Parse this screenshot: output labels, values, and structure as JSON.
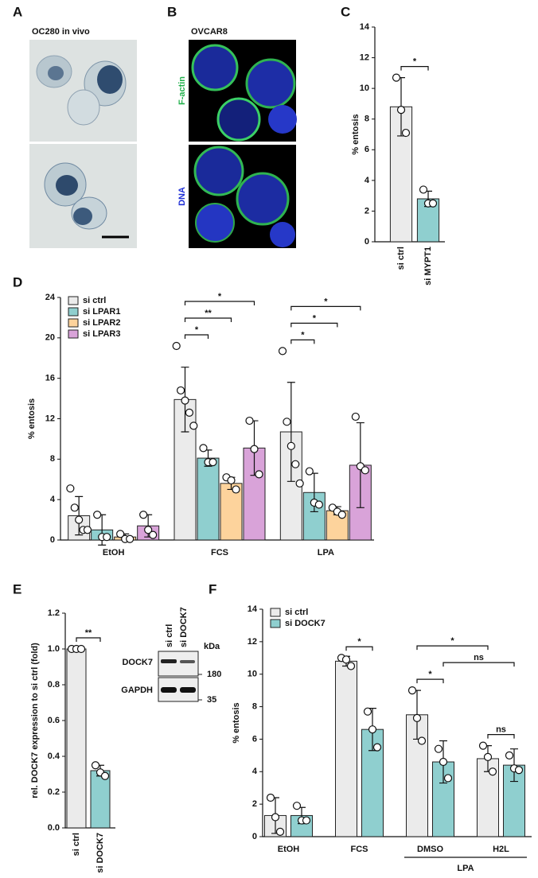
{
  "figure": {
    "panel_labels": [
      "A",
      "B",
      "C",
      "D",
      "E",
      "F"
    ],
    "panel_a": {
      "title": "OC280 in vivo"
    },
    "panel_b": {
      "title": "OVCAR8",
      "channels": [
        "F-actin",
        "DNA"
      ]
    },
    "blot": {
      "lanes": [
        "si ctrl",
        "si DOCK7"
      ],
      "unit": "kDa",
      "proteins": [
        "DOCK7",
        "GAPDH"
      ],
      "markers": [
        180,
        35
      ]
    }
  },
  "chart_data": [
    {
      "type": "bar",
      "y_label": "% entosis",
      "categories": [
        "si ctrl",
        "si MYPT1"
      ],
      "values": [
        8.8,
        2.8
      ],
      "errors": [
        1.9,
        0.5
      ],
      "points": [
        [
          10.7,
          8.6,
          7.1
        ],
        [
          3.4,
          2.5,
          2.5
        ]
      ],
      "colors": [
        "#ebebeb",
        "#8fcfcf"
      ],
      "ylim": [
        0,
        14
      ],
      "yticks": [
        0,
        2,
        4,
        6,
        8,
        10,
        12,
        14
      ],
      "significance": [
        {
          "label": "*",
          "between": [
            {
              "category": "si ctrl"
            },
            {
              "category": "si MYPT1"
            }
          ]
        }
      ]
    },
    {
      "type": "grouped_bar",
      "y_label": "% entosis",
      "categories": [
        "EtOH",
        "FCS",
        "LPA"
      ],
      "legend": "top-left",
      "series": [
        {
          "name": "si ctrl",
          "color": "#ebebeb",
          "values": [
            2.4,
            13.9,
            10.7
          ],
          "errors": [
            1.9,
            3.2,
            4.9
          ],
          "points": [
            [
              5.1,
              3.2,
              2.0,
              1.0,
              1.0
            ],
            [
              19.2,
              14.8,
              13.8,
              12.6,
              11.3
            ],
            [
              18.7,
              11.7,
              9.3,
              7.5,
              5.6
            ]
          ]
        },
        {
          "name": "si LPAR1",
          "color": "#8fcfcf",
          "values": [
            1.0,
            8.1,
            4.7
          ],
          "errors": [
            1.5,
            0.8,
            1.9
          ],
          "points": [
            [
              2.5,
              0.3,
              0.3
            ],
            [
              9.1,
              7.7,
              7.7
            ],
            [
              6.8,
              3.7,
              3.5
            ]
          ]
        },
        {
          "name": "si LPAR2",
          "color": "#fdd39c",
          "values": [
            0.3,
            5.6,
            2.9
          ],
          "errors": [
            0.3,
            0.6,
            0.4
          ],
          "points": [
            [
              0.6,
              0.1,
              0.1
            ],
            [
              6.2,
              5.9,
              5.0
            ],
            [
              3.2,
              2.8,
              2.5
            ]
          ]
        },
        {
          "name": "si LPAR3",
          "color": "#d9a3d9",
          "values": [
            1.4,
            9.1,
            7.4
          ],
          "errors": [
            1.1,
            2.7,
            4.2
          ],
          "points": [
            [
              2.5,
              1.0,
              0.5
            ],
            [
              11.8,
              9.0,
              6.5
            ],
            [
              12.2,
              7.3,
              6.9
            ]
          ]
        }
      ],
      "ylim": [
        0,
        24
      ],
      "yticks": [
        0,
        4,
        8,
        12,
        16,
        20,
        24
      ],
      "significance": [
        {
          "label": "*",
          "between": [
            {
              "category": "FCS",
              "series": "si ctrl"
            },
            {
              "category": "FCS",
              "series": "si LPAR1"
            }
          ]
        },
        {
          "label": "**",
          "between": [
            {
              "category": "FCS",
              "series": "si ctrl"
            },
            {
              "category": "FCS",
              "series": "si LPAR2"
            }
          ]
        },
        {
          "label": "*",
          "between": [
            {
              "category": "FCS",
              "series": "si ctrl"
            },
            {
              "category": "FCS",
              "series": "si LPAR3"
            }
          ]
        },
        {
          "label": "*",
          "between": [
            {
              "category": "LPA",
              "series": "si ctrl"
            },
            {
              "category": "LPA",
              "series": "si LPAR1"
            }
          ]
        },
        {
          "label": "*",
          "between": [
            {
              "category": "LPA",
              "series": "si ctrl"
            },
            {
              "category": "LPA",
              "series": "si LPAR2"
            }
          ]
        },
        {
          "label": "*",
          "between": [
            {
              "category": "LPA",
              "series": "si ctrl"
            },
            {
              "category": "LPA",
              "series": "si LPAR3"
            }
          ]
        }
      ]
    },
    {
      "type": "bar",
      "y_label": "rel. DOCK7 expression to si ctrl (fold)",
      "categories": [
        "si ctrl",
        "si DOCK7"
      ],
      "values": [
        1.0,
        0.32
      ],
      "errors": [
        0.005,
        0.03
      ],
      "points": [
        [
          1.0,
          1.0,
          1.0
        ],
        [
          0.35,
          0.31,
          0.29
        ]
      ],
      "colors": [
        "#ebebeb",
        "#8fcfcf"
      ],
      "ylim": [
        0,
        1.2
      ],
      "yticks": [
        {
          "value": 0,
          "label": "0.0"
        },
        0.2,
        0.4,
        0.6,
        0.8,
        {
          "value": 1,
          "label": "1.0"
        },
        1.2
      ],
      "significance": [
        {
          "label": "**",
          "between": [
            {
              "category": "si ctrl"
            },
            {
              "category": "si DOCK7"
            }
          ]
        }
      ]
    },
    {
      "type": "grouped_bar",
      "y_label": "% entosis",
      "categories": [
        "EtOH",
        "FCS",
        "DMSO",
        "H2L"
      ],
      "legend": "top-left",
      "group_labels": [
        {
          "label": "LPA",
          "categories": [
            "DMSO",
            "H2L"
          ]
        }
      ],
      "series": [
        {
          "name": "si ctrl",
          "color": "#ebebeb",
          "values": [
            1.3,
            10.8,
            7.5,
            4.8
          ],
          "errors": [
            1.1,
            0.3,
            1.5,
            0.8
          ],
          "points": [
            [
              2.4,
              1.2,
              0.3
            ],
            [
              11.0,
              10.9,
              10.5
            ],
            [
              9.0,
              7.3,
              5.9
            ],
            [
              5.6,
              4.9,
              4.0
            ]
          ]
        },
        {
          "name": "si DOCK7",
          "color": "#8fcfcf",
          "values": [
            1.3,
            6.6,
            4.6,
            4.4
          ],
          "errors": [
            0.5,
            1.3,
            1.3,
            1.0
          ],
          "points": [
            [
              1.9,
              1.0,
              1.0
            ],
            [
              7.7,
              6.6,
              5.5
            ],
            [
              5.4,
              4.6,
              3.6
            ],
            [
              5.0,
              4.2,
              4.1
            ]
          ]
        }
      ],
      "ylim": [
        0,
        14
      ],
      "yticks": [
        0,
        2,
        4,
        6,
        8,
        10,
        12,
        14
      ],
      "significance": [
        {
          "label": "*",
          "between": [
            {
              "category": "FCS",
              "series": "si ctrl"
            },
            {
              "category": "FCS",
              "series": "si DOCK7"
            }
          ]
        },
        {
          "label": "*",
          "between": [
            {
              "category": "DMSO",
              "series": "si ctrl"
            },
            {
              "category": "DMSO",
              "series": "si DOCK7"
            }
          ]
        },
        {
          "label": "ns",
          "between": [
            {
              "category": "H2L",
              "series": "si ctrl"
            },
            {
              "category": "H2L",
              "series": "si DOCK7"
            }
          ]
        },
        {
          "label": "ns",
          "between": [
            {
              "category": "DMSO",
              "series": "si DOCK7"
            },
            {
              "category": "H2L",
              "series": "si DOCK7"
            }
          ]
        },
        {
          "label": "*",
          "between": [
            {
              "category": "DMSO",
              "series": "si ctrl"
            },
            {
              "category": "H2L",
              "series": "si ctrl"
            }
          ]
        }
      ]
    }
  ]
}
